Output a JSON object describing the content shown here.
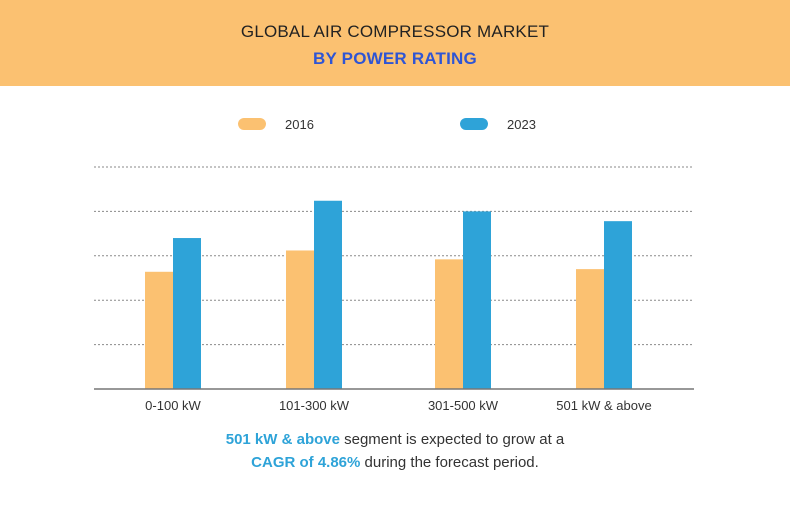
{
  "header": {
    "title": "GLOBAL AIR COMPRESSOR MARKET",
    "subtitle": "BY POWER RATING"
  },
  "colors": {
    "header_bg": "#fbc171",
    "subtitle": "#2f55d4",
    "series_2016": "#fbc171",
    "series_2023": "#2ea3d8",
    "highlight": "#2ea3d8"
  },
  "caption": {
    "highlight_1": "501 kW & above",
    "text_1": " segment is expected to grow at a",
    "highlight_2": "CAGR of 4.86%",
    "text_2": " during the forecast period."
  },
  "chart_data": {
    "type": "bar",
    "categories": [
      "0-100 kW",
      "101-300 kW",
      "301-500 kW",
      "501 kW & above"
    ],
    "series": [
      {
        "name": "2016",
        "values": [
          1.32,
          1.56,
          1.46,
          1.35
        ]
      },
      {
        "name": "2023",
        "values": [
          1.7,
          2.12,
          2.0,
          1.89
        ]
      }
    ],
    "ylim": [
      0,
      2.5
    ],
    "gridlines": 5,
    "grid": true,
    "legend": "top-center",
    "title": "",
    "xlabel": "",
    "ylabel": ""
  }
}
